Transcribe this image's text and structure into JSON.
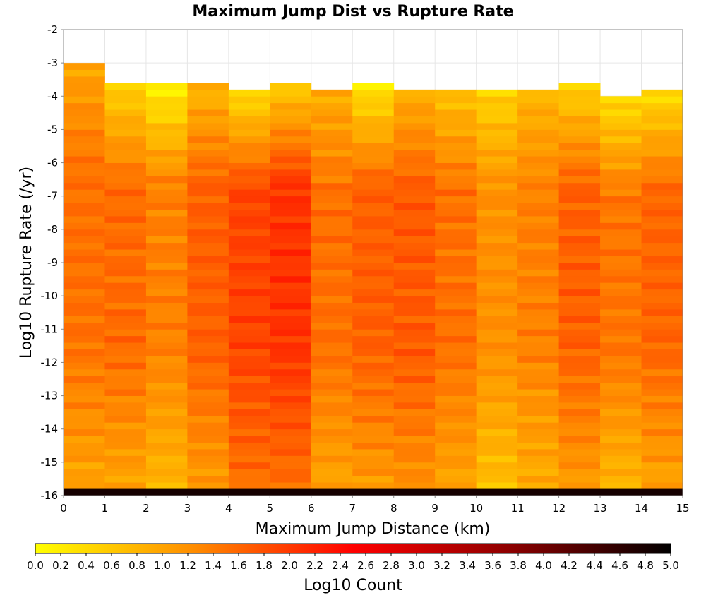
{
  "chart_data": {
    "type": "heatmap",
    "title": "Maximum Jump Dist vs Rupture Rate",
    "xlabel": "Maximum Jump Distance (km)",
    "ylabel": "Log10 Rupture Rate (/yr)",
    "xlim": [
      0,
      15
    ],
    "ylim": [
      -16,
      -2
    ],
    "x_ticks": [
      "0",
      "1",
      "2",
      "3",
      "4",
      "5",
      "6",
      "7",
      "8",
      "9",
      "10",
      "11",
      "12",
      "13",
      "14",
      "15"
    ],
    "y_ticks": [
      "-2",
      "-3",
      "-4",
      "-5",
      "-6",
      "-7",
      "-8",
      "-9",
      "-10",
      "-11",
      "-12",
      "-13",
      "-14",
      "-15",
      "-16"
    ],
    "colorbar": {
      "label": "Log10 Count",
      "min": 0.0,
      "max": 5.0,
      "ticks": [
        "0.0",
        "0.2",
        "0.4",
        "0.6",
        "0.8",
        "1.0",
        "1.2",
        "1.4",
        "1.6",
        "1.8",
        "2.0",
        "2.2",
        "2.4",
        "2.6",
        "2.8",
        "3.0",
        "3.2",
        "3.4",
        "3.6",
        "3.8",
        "4.0",
        "4.2",
        "4.4",
        "4.6",
        "4.8",
        "5.0"
      ],
      "colors": [
        "#ffff00",
        "#ff8c00",
        "#ff0000",
        "#8b0000",
        "#000000"
      ]
    },
    "x_bin_width": 1,
    "y_bin_height": 0.2,
    "grid": true,
    "column_profiles": [
      {
        "x_bin": [
          0,
          1
        ],
        "top": -3.0,
        "top_value": 1.0,
        "core_value": 1.5,
        "bottom_value": 1.0
      },
      {
        "x_bin": [
          1,
          2
        ],
        "top": -3.6,
        "top_value": 0.5,
        "core_value": 1.55,
        "bottom_value": 1.0
      },
      {
        "x_bin": [
          2,
          3
        ],
        "top": -3.6,
        "top_value": 0.2,
        "core_value": 1.35,
        "bottom_value": 0.8
      },
      {
        "x_bin": [
          3,
          4
        ],
        "top": -3.6,
        "top_value": 0.8,
        "core_value": 1.65,
        "bottom_value": 1.1
      },
      {
        "x_bin": [
          4,
          5
        ],
        "top": -3.8,
        "top_value": 0.4,
        "core_value": 1.9,
        "bottom_value": 1.5
      },
      {
        "x_bin": [
          5,
          6
        ],
        "top": -3.6,
        "top_value": 0.6,
        "core_value": 2.05,
        "bottom_value": 1.5
      },
      {
        "x_bin": [
          6,
          7
        ],
        "top": -3.8,
        "top_value": 0.9,
        "core_value": 1.5,
        "bottom_value": 1.0
      },
      {
        "x_bin": [
          7,
          8
        ],
        "top": -3.6,
        "top_value": 0.3,
        "core_value": 1.65,
        "bottom_value": 1.1
      },
      {
        "x_bin": [
          8,
          9
        ],
        "top": -3.8,
        "top_value": 0.9,
        "core_value": 1.7,
        "bottom_value": 1.2
      },
      {
        "x_bin": [
          9,
          10
        ],
        "top": -3.8,
        "top_value": 0.7,
        "core_value": 1.5,
        "bottom_value": 1.0
      },
      {
        "x_bin": [
          10,
          11
        ],
        "top": -3.8,
        "top_value": 0.5,
        "core_value": 1.2,
        "bottom_value": 0.7
      },
      {
        "x_bin": [
          11,
          12
        ],
        "top": -3.8,
        "top_value": 0.8,
        "core_value": 1.35,
        "bottom_value": 0.9
      },
      {
        "x_bin": [
          12,
          13
        ],
        "top": -3.6,
        "top_value": 0.5,
        "core_value": 1.65,
        "bottom_value": 1.1
      },
      {
        "x_bin": [
          13,
          14
        ],
        "top": -4.0,
        "top_value": 0.4,
        "core_value": 1.45,
        "bottom_value": 0.8
      },
      {
        "x_bin": [
          14,
          15
        ],
        "top": -3.8,
        "top_value": 0.4,
        "core_value": 1.6,
        "bottom_value": 1.0
      }
    ],
    "bottom_row": {
      "y_bin": [
        -16,
        -15.8
      ],
      "value": 4.8
    }
  }
}
